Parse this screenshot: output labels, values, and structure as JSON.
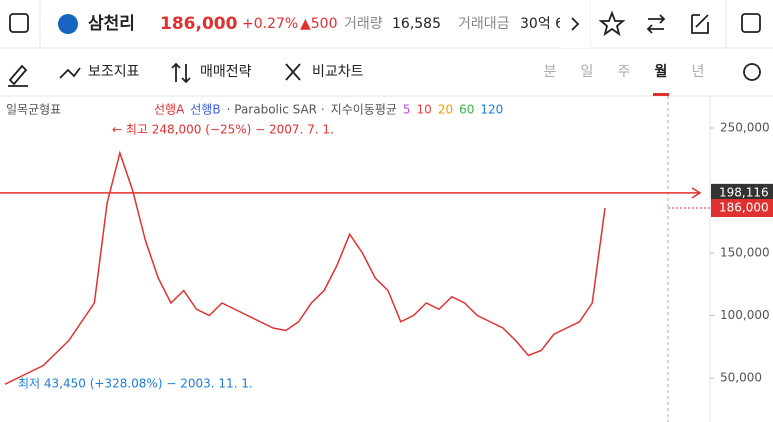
{
  "header": {
    "stock_name": "삼천리",
    "price": "186,000",
    "change_pct": "+0.27%",
    "change_abs": "▲500",
    "volume_label": "거래량",
    "volume": "16,585",
    "amount_label": "거래대금",
    "amount": "30억 6"
  },
  "toolbar": {
    "indicators": "보조지표",
    "strategy": "매매전략",
    "compare": "비교차트",
    "periods": [
      "분",
      "일",
      "주",
      "월",
      "년"
    ],
    "active_period": 3
  },
  "chart_data": {
    "type": "line",
    "indicator_label": "일목균형표",
    "legend": [
      {
        "name": "선행A",
        "color": "#e03131"
      },
      {
        "name": "선행B",
        "color": "#3b5bdb"
      },
      {
        "name": "· Parabolic SAR ·",
        "color": "#555555"
      },
      {
        "name": "지수이동평균",
        "color": "#555555"
      }
    ],
    "ma_periods": [
      {
        "name": "5",
        "color": "#be4bdb"
      },
      {
        "name": "10",
        "color": "#f03e3e"
      },
      {
        "name": "20",
        "color": "#f59f00"
      },
      {
        "name": "60",
        "color": "#37b24d"
      },
      {
        "name": "120",
        "color": "#1c7ed6"
      }
    ],
    "high_note": "← 최고 248,000 (−25%) − 2007. 7. 1.",
    "low_note": "최저 43,450 (+328.08%) − 2003. 11. 1.",
    "ylim": [
      14800,
      275600
    ],
    "yticks": [
      {
        "value": 50000,
        "label": "50,000"
      },
      {
        "value": 100000,
        "label": "100,000"
      },
      {
        "value": 150000,
        "label": "150,000"
      },
      {
        "value": 250000,
        "label": "250,000"
      }
    ],
    "reference_line": {
      "value": 198116,
      "label": "198,116",
      "color": "#e03131"
    },
    "current_price": {
      "value": 186000,
      "label": "186,000",
      "color": "#e03131"
    },
    "price": {
      "color": "#e03131",
      "values": [
        45000,
        50000,
        55000,
        60000,
        70000,
        80000,
        95000,
        110000,
        190000,
        230000,
        200000,
        160000,
        130000,
        110000,
        120000,
        105000,
        100000,
        110000,
        105000,
        100000,
        95000,
        90000,
        88000,
        95000,
        110000,
        120000,
        140000,
        165000,
        150000,
        130000,
        120000,
        95000,
        100000,
        110000,
        105000,
        115000,
        110000,
        100000,
        95000,
        90000,
        80000,
        68000,
        72000,
        85000,
        90000,
        95000,
        110000,
        186000
      ]
    }
  }
}
